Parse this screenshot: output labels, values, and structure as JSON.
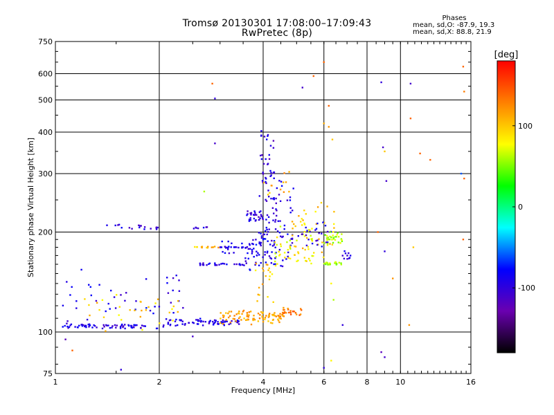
{
  "figure": {
    "title_line1": "Tromsø 20130301 17:08:00–17:09:43",
    "title_line2": "RwPretec (8p)",
    "phase_box": {
      "title": "Phases",
      "line_o": "mean, sd,O: -87.9, 19.3",
      "line_x": "mean, sd,X:  88.8, 21.9"
    }
  },
  "chart_data": {
    "type": "scatter",
    "title": "Tromsø 20130301 17:08:00–17:09:43",
    "subtitle": "RwPretec (8p)",
    "xlabel": "Frequency [MHz]",
    "ylabel": "Stationary phase Virtual Height [km]",
    "x_scale": "log",
    "y_scale": "log",
    "xlim": [
      1,
      16
    ],
    "ylim": [
      75,
      750
    ],
    "x_ticks": [
      1,
      2,
      4,
      6,
      8,
      10,
      16
    ],
    "x_tick_labels": [
      "1",
      "2",
      "4",
      "6",
      "8",
      "10",
      "16"
    ],
    "y_ticks": [
      75,
      100,
      200,
      300,
      400,
      500,
      600,
      750
    ],
    "y_tick_labels": [
      "75",
      "100",
      "200",
      "300",
      "400",
      "500",
      "600",
      "750"
    ],
    "colorbar": {
      "label": "[deg]",
      "range": [
        -180,
        180
      ],
      "ticks": [
        100,
        0,
        -100
      ],
      "tick_labels": [
        "100",
        "0",
        "-100"
      ],
      "colors": [
        "#000000",
        "#6a00b0",
        "#0000ff",
        "#00ffff",
        "#00ff00",
        "#ffff00",
        "#ff8000",
        "#ff0000"
      ]
    },
    "point_groups": [
      {
        "x_range": [
          1.02,
          2.1
        ],
        "h": [
          104,
          104
        ],
        "phase": -95,
        "n": 70,
        "jitter": 0.03
      },
      {
        "x_range": [
          2.1,
          3.4
        ],
        "h": [
          105,
          109
        ],
        "phase": -95,
        "n": 70,
        "jitter": 0.015
      },
      {
        "x_range": [
          1.05,
          2.4
        ],
        "h": [
          108,
          150
        ],
        "phase": -90,
        "n": 45,
        "jitter": 0.12
      },
      {
        "x_range": [
          1.2,
          2.3
        ],
        "h": [
          105,
          130
        ],
        "phase": 95,
        "n": 30,
        "jitter": 0.1
      },
      {
        "x_range": [
          3.0,
          4.6
        ],
        "h": [
          106,
          115
        ],
        "phase": 115,
        "n": 90,
        "jitter": 0.02
      },
      {
        "x_range": [
          4.5,
          5.2
        ],
        "h": [
          113,
          118
        ],
        "phase": 135,
        "n": 25,
        "jitter": 0.02
      },
      {
        "x_range": [
          1.4,
          2.0
        ],
        "h": [
          205,
          210
        ],
        "phase": -100,
        "n": 18,
        "jitter": 0.015
      },
      {
        "x_range": [
          2.5,
          2.75
        ],
        "h": [
          206,
          206
        ],
        "phase": -100,
        "n": 7,
        "jitter": 0.01
      },
      {
        "x_range": [
          2.5,
          3.0
        ],
        "h": [
          180,
          180
        ],
        "phase": 105,
        "n": 14,
        "jitter": 0.01
      },
      {
        "x_range": [
          3.0,
          3.6
        ],
        "h": [
          180,
          180
        ],
        "phase": -95,
        "n": 20,
        "jitter": 0.01
      },
      {
        "x_range": [
          2.6,
          3.6
        ],
        "h": [
          160,
          160
        ],
        "phase": -95,
        "n": 30,
        "jitter": 0.015
      },
      {
        "x_range": [
          3.0,
          4.2
        ],
        "h": [
          170,
          190
        ],
        "phase": -90,
        "n": 30,
        "jitter": 0.04
      },
      {
        "x_range": [
          3.6,
          4.0
        ],
        "h": [
          230,
          215
        ],
        "phase": -100,
        "n": 30,
        "jitter": 0.02
      },
      {
        "x_range": [
          3.5,
          4.9
        ],
        "h": [
          155,
          200
        ],
        "phase": -90,
        "n": 60,
        "jitter": 0.07
      },
      {
        "x_range": [
          3.9,
          4.3
        ],
        "h": [
          160,
          400
        ],
        "phase": -100,
        "n": 50,
        "jitter": 0.05
      },
      {
        "x_range": [
          4.0,
          4.9
        ],
        "h": [
          200,
          310
        ],
        "phase": -95,
        "n": 40,
        "jitter": 0.05
      },
      {
        "x_range": [
          4.3,
          5.6
        ],
        "h": [
          160,
          210
        ],
        "phase": 80,
        "n": 50,
        "jitter": 0.06
      },
      {
        "x_range": [
          4.8,
          6.5
        ],
        "h": [
          165,
          245
        ],
        "phase": 95,
        "n": 40,
        "jitter": 0.05
      },
      {
        "x_range": [
          5.0,
          6.3
        ],
        "h": [
          180,
          210
        ],
        "phase": -95,
        "n": 25,
        "jitter": 0.05
      },
      {
        "x_range": [
          6.0,
          6.8
        ],
        "h": [
          185,
          200
        ],
        "phase": 60,
        "n": 30,
        "jitter": 0.03
      },
      {
        "x_range": [
          6.0,
          6.8
        ],
        "h": [
          160,
          162
        ],
        "phase": 60,
        "n": 20,
        "jitter": 0.02
      },
      {
        "x_range": [
          6.8,
          7.2
        ],
        "h": [
          165,
          175
        ],
        "phase": -90,
        "n": 10,
        "jitter": 0.02
      },
      {
        "x_range": [
          3.8,
          4.3
        ],
        "h": [
          125,
          160
        ],
        "phase": 100,
        "n": 20,
        "jitter": 0.05
      },
      {
        "x_range": [
          4.0,
          4.8
        ],
        "h": [
          260,
          300
        ],
        "phase": 110,
        "n": 12,
        "jitter": 0.05
      }
    ],
    "sparse_points": [
      [
        2.85,
        560,
        140
      ],
      [
        2.9,
        505,
        -100
      ],
      [
        2.9,
        370,
        -110
      ],
      [
        2.7,
        265,
        60
      ],
      [
        5.2,
        545,
        -110
      ],
      [
        5.6,
        590,
        140
      ],
      [
        6.0,
        650,
        140
      ],
      [
        6.2,
        480,
        140
      ],
      [
        6.0,
        425,
        110
      ],
      [
        6.2,
        415,
        120
      ],
      [
        6.35,
        380,
        100
      ],
      [
        8.8,
        565,
        -100
      ],
      [
        10.7,
        560,
        -110
      ],
      [
        10.7,
        440,
        140
      ],
      [
        8.9,
        360,
        -110
      ],
      [
        9.0,
        350,
        100
      ],
      [
        9.1,
        285,
        -110
      ],
      [
        9.0,
        175,
        -100
      ],
      [
        10.9,
        180,
        100
      ],
      [
        11.4,
        345,
        140
      ],
      [
        12.2,
        330,
        140
      ],
      [
        15.0,
        300,
        -60
      ],
      [
        15.3,
        290,
        140
      ],
      [
        15.2,
        630,
        140
      ],
      [
        15.3,
        530,
        130
      ],
      [
        15.2,
        190,
        140
      ],
      [
        9.5,
        145,
        120
      ],
      [
        8.6,
        200,
        140
      ],
      [
        8.8,
        87,
        -120
      ],
      [
        9.0,
        84,
        -110
      ],
      [
        6.0,
        78,
        -100
      ],
      [
        6.3,
        82,
        80
      ],
      [
        6.8,
        105,
        -100
      ],
      [
        10.6,
        105,
        120
      ],
      [
        2.5,
        97,
        -110
      ],
      [
        1.55,
        77,
        -100
      ],
      [
        1.07,
        95,
        -120
      ],
      [
        1.12,
        88,
        140
      ],
      [
        6.4,
        125,
        60
      ],
      [
        6.3,
        140,
        80
      ]
    ]
  }
}
